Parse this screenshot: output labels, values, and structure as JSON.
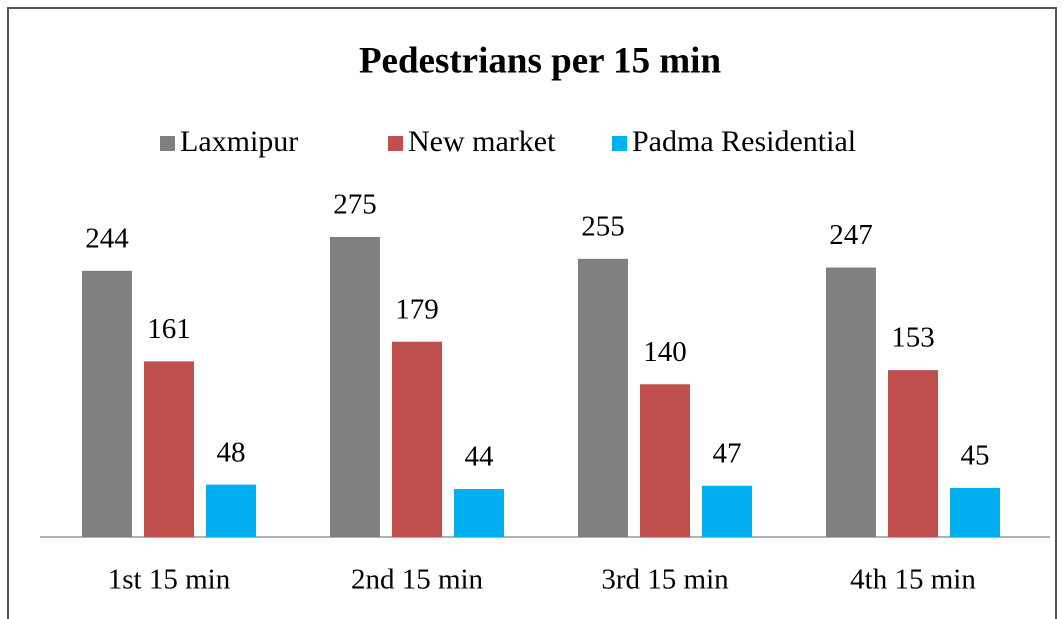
{
  "chart_data": {
    "type": "bar",
    "title": "Pedestrians  per 15 min",
    "categories": [
      "1st 15 min",
      "2nd 15 min",
      "3rd 15 min",
      "4th 15 min"
    ],
    "series": [
      {
        "name": "Laxmipur",
        "color": "#808080",
        "values": [
          244,
          275,
          255,
          247
        ]
      },
      {
        "name": "New market",
        "color": "#c0504d",
        "values": [
          161,
          179,
          140,
          153
        ]
      },
      {
        "name": "Padma Residential",
        "color": "#00b0f0",
        "values": [
          48,
          44,
          47,
          45
        ]
      }
    ],
    "legend": "top"
  }
}
